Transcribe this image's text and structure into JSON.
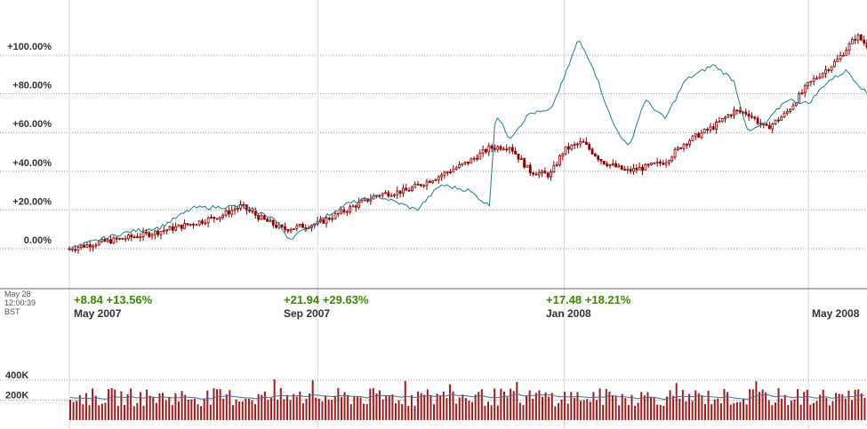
{
  "timestamp": {
    "date": "May 28",
    "time": "12:00:39",
    "zone": "BST"
  },
  "colors": {
    "price": "#8b0000",
    "comparison": "#1f7f8a",
    "volume": "#9e1b1b",
    "volume_avg": "#4a6a9a",
    "change_positive": "#3a8a00",
    "grid": "#999999"
  },
  "periods": [
    {
      "label": "May 2007",
      "change": "+8.84",
      "pct": "+13.56%",
      "date": "2007-05-01"
    },
    {
      "label": "Sep 2007",
      "change": "+21.94",
      "pct": "+29.63%",
      "date": "2007-09-01"
    },
    {
      "label": "Jan 2008",
      "change": "+17.48",
      "pct": "+18.21%",
      "date": "2008-01-01"
    },
    {
      "label": "May 2008",
      "change": "",
      "pct": "",
      "date": "2008-05-01"
    }
  ],
  "chart_data": [
    {
      "type": "line",
      "title": "",
      "y_unit": "%",
      "yticks": [
        "0.00%",
        "+20.00%",
        "+40.00%",
        "+60.00%",
        "+80.00%",
        "+100.00%"
      ],
      "ylim": [
        -8,
        120
      ],
      "xlim": [
        "2007-05-01",
        "2008-05-30"
      ],
      "grid": true,
      "series": [
        {
          "style": "candlestick",
          "points": [
            [
              "2007-05-01",
              0
            ],
            [
              "2007-05-15",
              3
            ],
            [
              "2007-06-01",
              6
            ],
            [
              "2007-06-15",
              9
            ],
            [
              "2007-07-01",
              13
            ],
            [
              "2007-07-15",
              17
            ],
            [
              "2007-07-25",
              22
            ],
            [
              "2007-08-05",
              15
            ],
            [
              "2007-08-15",
              10
            ],
            [
              "2007-09-01",
              13
            ],
            [
              "2007-09-15",
              20
            ],
            [
              "2007-10-01",
              28
            ],
            [
              "2007-10-15",
              30
            ],
            [
              "2007-11-01",
              38
            ],
            [
              "2007-11-15",
              45
            ],
            [
              "2007-11-25",
              52
            ],
            [
              "2007-12-05",
              53
            ],
            [
              "2007-12-15",
              40
            ],
            [
              "2007-12-25",
              38
            ],
            [
              "2008-01-01",
              51
            ],
            [
              "2008-01-10",
              55
            ],
            [
              "2008-01-20",
              45
            ],
            [
              "2008-02-01",
              40
            ],
            [
              "2008-02-10",
              42
            ],
            [
              "2008-02-20",
              45
            ],
            [
              "2008-03-01",
              55
            ],
            [
              "2008-03-15",
              63
            ],
            [
              "2008-03-25",
              71
            ],
            [
              "2008-04-01",
              70
            ],
            [
              "2008-04-10",
              62
            ],
            [
              "2008-04-20",
              70
            ],
            [
              "2008-05-01",
              85
            ],
            [
              "2008-05-15",
              97
            ],
            [
              "2008-05-25",
              110
            ],
            [
              "2008-05-30",
              105
            ]
          ]
        },
        {
          "style": "line",
          "points": [
            [
              "2007-05-01",
              0
            ],
            [
              "2007-05-20",
              6
            ],
            [
              "2007-06-01",
              9
            ],
            [
              "2007-06-15",
              11
            ],
            [
              "2007-07-01",
              21
            ],
            [
              "2007-07-25",
              22
            ],
            [
              "2007-08-10",
              16
            ],
            [
              "2007-08-18",
              5
            ],
            [
              "2007-09-01",
              14
            ],
            [
              "2007-09-15",
              23
            ],
            [
              "2007-10-01",
              27
            ],
            [
              "2007-10-10",
              24
            ],
            [
              "2007-10-20",
              20
            ],
            [
              "2007-11-01",
              33
            ],
            [
              "2007-11-15",
              30
            ],
            [
              "2007-11-25",
              22
            ],
            [
              "2007-11-28",
              70
            ],
            [
              "2007-12-05",
              57
            ],
            [
              "2007-12-15",
              70
            ],
            [
              "2007-12-25",
              71
            ],
            [
              "2008-01-01",
              88
            ],
            [
              "2008-01-08",
              108
            ],
            [
              "2008-01-15",
              95
            ],
            [
              "2008-01-25",
              65
            ],
            [
              "2008-02-02",
              52
            ],
            [
              "2008-02-10",
              77
            ],
            [
              "2008-02-20",
              67
            ],
            [
              "2008-03-01",
              87
            ],
            [
              "2008-03-15",
              95
            ],
            [
              "2008-03-25",
              87
            ],
            [
              "2008-04-01",
              60
            ],
            [
              "2008-04-10",
              65
            ],
            [
              "2008-04-20",
              77
            ],
            [
              "2008-05-01",
              75
            ],
            [
              "2008-05-10",
              86
            ],
            [
              "2008-05-20",
              92
            ],
            [
              "2008-05-30",
              80
            ]
          ]
        }
      ]
    },
    {
      "type": "bar",
      "title": "",
      "yticks": [
        "200K",
        "400K"
      ],
      "ylim": [
        0,
        450000
      ],
      "xlim": [
        "2007-05-01",
        "2008-05-30"
      ],
      "approx_avg_volume": 230000,
      "approx_max_volume": 420000
    }
  ]
}
